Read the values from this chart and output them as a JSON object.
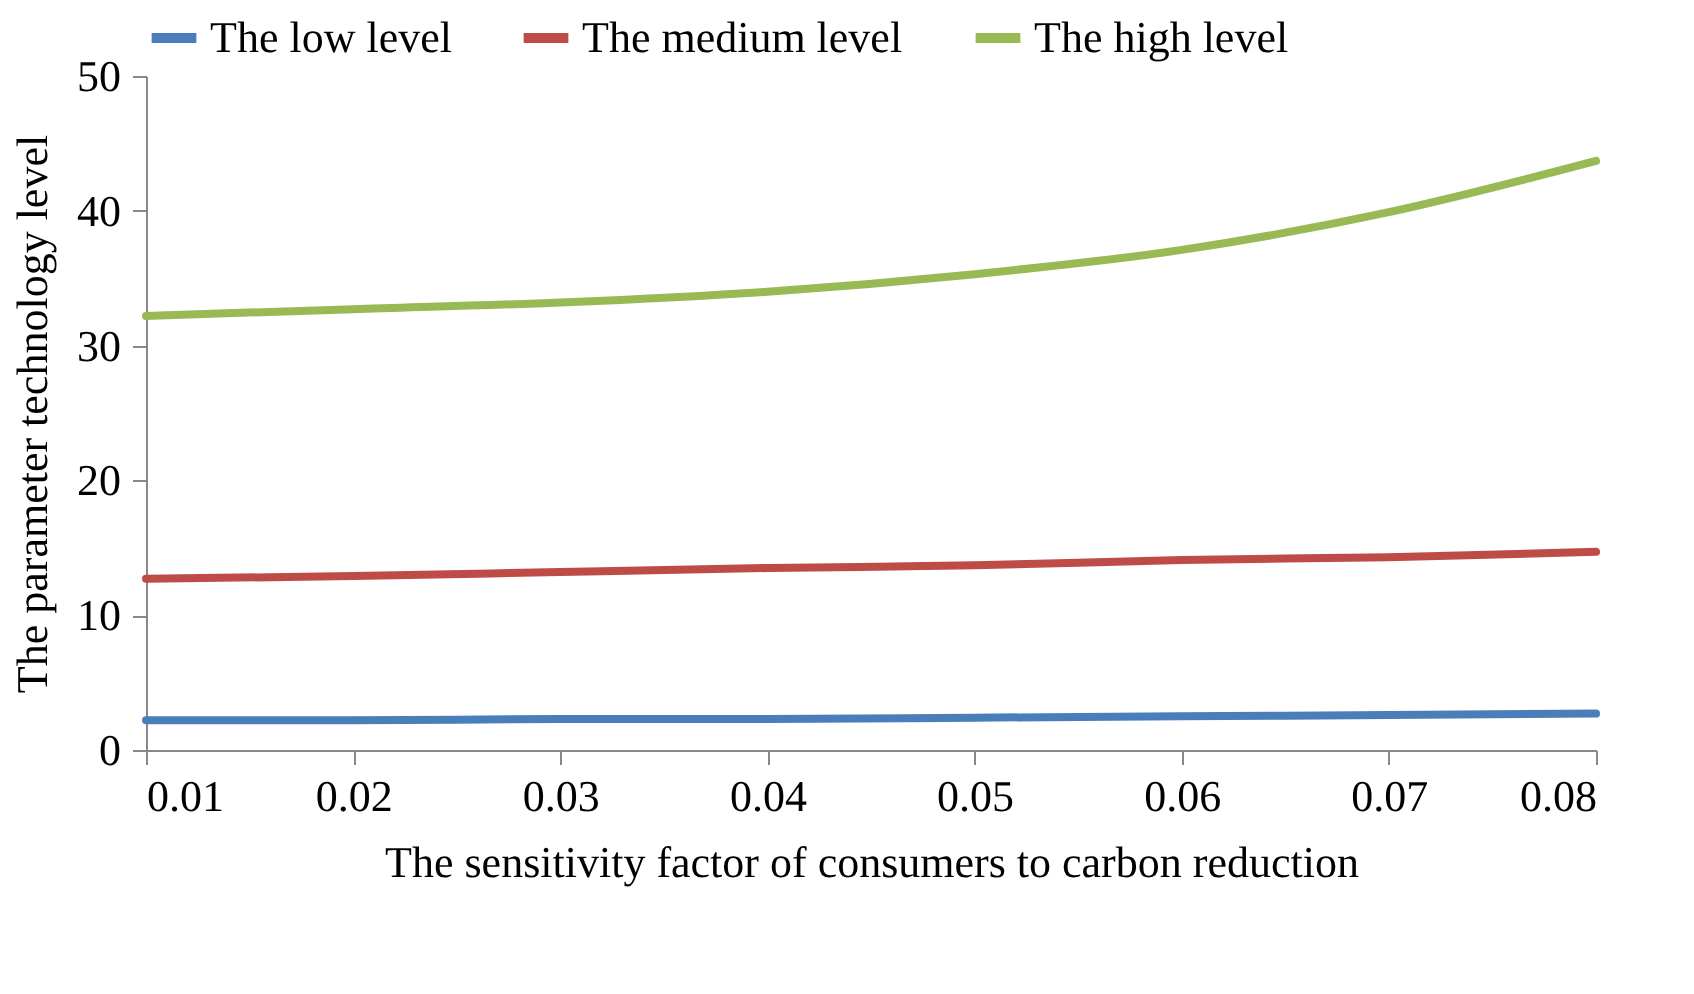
{
  "chart_data": {
    "type": "line",
    "xlabel": "The sensitivity factor of consumers to carbon reduction",
    "ylabel": "The parameter technology level",
    "x": [
      0.01,
      0.02,
      0.03,
      0.04,
      0.05,
      0.06,
      0.07,
      0.08
    ],
    "series": [
      {
        "name": "The low level",
        "color": "#4a7ebb",
        "values": [
          2.2,
          2.2,
          2.3,
          2.3,
          2.4,
          2.5,
          2.6,
          2.7
        ]
      },
      {
        "name": "The medium level",
        "color": "#be4b48",
        "values": [
          12.7,
          12.9,
          13.2,
          13.5,
          13.7,
          14.1,
          14.3,
          14.7
        ]
      },
      {
        "name": "The high level",
        "color": "#98b954",
        "values": [
          32.2,
          32.7,
          33.2,
          34.0,
          35.3,
          37.1,
          39.9,
          43.7
        ]
      }
    ],
    "xlim": [
      0.01,
      0.08
    ],
    "xticks": [
      {
        "value": 0.01,
        "label": "0.01"
      },
      {
        "value": 0.02,
        "label": "0.02"
      },
      {
        "value": 0.03,
        "label": "0.03"
      },
      {
        "value": 0.04,
        "label": "0.04"
      },
      {
        "value": 0.05,
        "label": "0.05"
      },
      {
        "value": 0.06,
        "label": "0.06"
      },
      {
        "value": 0.07,
        "label": "0.07"
      },
      {
        "value": 0.08,
        "label": "0.08"
      }
    ],
    "ylim": [
      0,
      50
    ],
    "yticks": [
      0,
      10,
      20,
      30,
      40,
      50
    ],
    "grid": false,
    "legend": "top",
    "marker": "none",
    "line_style": "solid"
  }
}
